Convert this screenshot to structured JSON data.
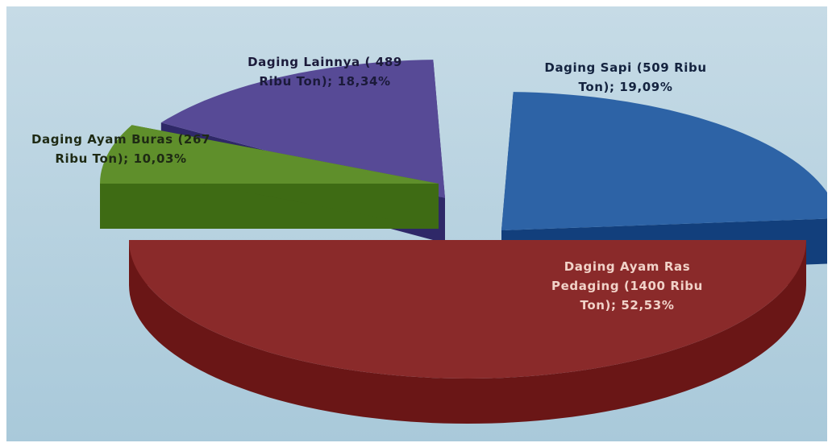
{
  "chart_data": {
    "type": "pie",
    "style": "3d-exploded",
    "title": "",
    "colors": {
      "background_top": "#c6dbe6",
      "background_bottom": "#a9c9da"
    },
    "slices": [
      {
        "id": "ayam-ras",
        "value": 1400,
        "percent": 52.53,
        "label_lines": [
          "Daging Ayam Ras",
          "Pedaging (1400 Ribu",
          "Ton); 52,53%"
        ],
        "top_color": "#8a2a2a",
        "side_color": "#6a1616",
        "label_color": "#f1d2c8"
      },
      {
        "id": "ayam-buras",
        "value": 267,
        "percent": 10.03,
        "label_lines": [
          "Daging Ayam Buras (267",
          "Ribu Ton); 10,03%"
        ],
        "top_color": "#5f8f2b",
        "side_color": "#3e6b14",
        "label_color": "#1e2a14"
      },
      {
        "id": "lainnya",
        "value": 489,
        "percent": 18.34,
        "label_lines": [
          "Daging Lainnya ( 489",
          "Ribu Ton); 18,34%"
        ],
        "top_color": "#574a96",
        "side_color": "#2f2868",
        "label_color": "#1b1a3a"
      },
      {
        "id": "sapi",
        "value": 509,
        "percent": 19.09,
        "label_lines": [
          "Daging Sapi (509 Ribu",
          "Ton); 19,09%"
        ],
        "top_color": "#2d63a6",
        "side_color": "#123f7c",
        "label_color": "#14233f"
      }
    ]
  }
}
